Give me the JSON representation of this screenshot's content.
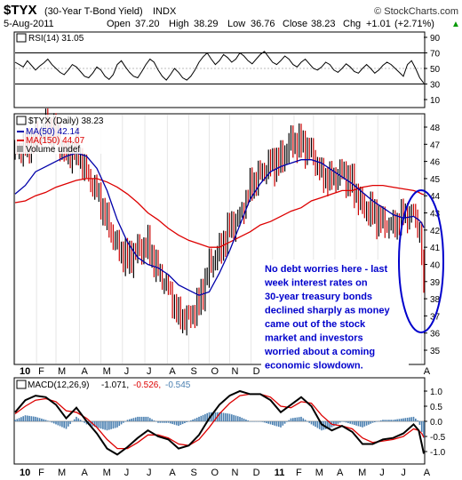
{
  "header": {
    "symbol": "$TYX",
    "name": "(30-Year T-Bond Yield)",
    "exchange": "INDX",
    "watermark": "© StockCharts.com",
    "date": "5-Aug-2011",
    "quote": {
      "open_label": "Open",
      "open": "37.20",
      "high_label": "High",
      "high": "38.29",
      "low_label": "Low",
      "low": "36.76",
      "close_label": "Close",
      "close": "38.23",
      "chg_label": "Chg",
      "chg": "+1.01",
      "chg_pct": "(+2.71%)",
      "chg_arrow": "▲"
    }
  },
  "colors": {
    "price_up": "#000000",
    "price_down": "#cc0000",
    "ma50": "#0000aa",
    "ma150": "#dd0000",
    "rsi": "#000000",
    "macd": "#000000",
    "signal": "#dd0000",
    "histogram": "#4a7fb0",
    "annotation_text": "#0000cc",
    "annotation_bg": "#ffffff",
    "ellipse": "#0000cc"
  },
  "rsi_panel": {
    "legend": "RSI(14) 31.05",
    "ticks": [
      "90",
      "70",
      "50",
      "30",
      "10"
    ],
    "guide_lines": [
      70,
      30
    ]
  },
  "price_panel": {
    "legend_title": "$TYX (Daily) 38.23",
    "legend_ma50": "MA(50) 42.14",
    "legend_ma150": "MA(150) 44.07",
    "legend_volume": "Volume undef",
    "ticks": [
      "48",
      "47",
      "46",
      "45",
      "44",
      "43",
      "42",
      "41",
      "40",
      "39",
      "38",
      "37",
      "36",
      "35"
    ]
  },
  "annotation": {
    "lines": [
      "No debt worries here - last",
      "week interest rates on",
      "30-year treasury bonds",
      "declined sharply as money",
      "came out of the stock",
      "market and investors",
      "worried about a coming",
      "economic slowdown."
    ]
  },
  "time_axis": {
    "labels": [
      "10",
      "F",
      "M",
      "A",
      "M",
      "J",
      "J",
      "A",
      "S",
      "O",
      "N",
      "D",
      "11",
      "F",
      "M",
      "A",
      "M",
      "J",
      "J",
      "A"
    ]
  },
  "macd_panel": {
    "legend_name": "MACD(12,26,9)",
    "legend_macd": "-1.071,",
    "legend_signal": "-0.526,",
    "legend_hist": "-0.545",
    "ticks": [
      "1.0",
      "0.5",
      "0.0",
      "-0.5",
      "-1.0"
    ]
  },
  "chart_data": [
    {
      "type": "line",
      "name": "RSI(14)",
      "title": "RSI(14) 31.05",
      "ylim": [
        10,
        90
      ],
      "y_ticks": [
        90,
        70,
        50,
        30,
        10
      ],
      "grid": false,
      "x": [
        0,
        4,
        8,
        12,
        16,
        20,
        24,
        28,
        32,
        36,
        40,
        44,
        48,
        52,
        56,
        60,
        64,
        68,
        72,
        76,
        80,
        84,
        88,
        92,
        96,
        100,
        104,
        108,
        112,
        116,
        120,
        124,
        128,
        132,
        136,
        140,
        144,
        148,
        152,
        156,
        160,
        164,
        168,
        172,
        176,
        180,
        184,
        188,
        192,
        196,
        200,
        204,
        208,
        212,
        216,
        220,
        224,
        228,
        232,
        236,
        240,
        244,
        248,
        252,
        256,
        260,
        264,
        268,
        272,
        276,
        280,
        284,
        288,
        292,
        296,
        300,
        304,
        308,
        312,
        316,
        320,
        324,
        328,
        332,
        336,
        340,
        344,
        348,
        352,
        356,
        360,
        364,
        368,
        372,
        376,
        380,
        384,
        388,
        392,
        396,
        400
      ],
      "values": [
        58,
        55,
        52,
        60,
        54,
        48,
        53,
        57,
        62,
        55,
        50,
        45,
        42,
        48,
        55,
        52,
        46,
        40,
        38,
        44,
        52,
        48,
        40,
        36,
        42,
        55,
        60,
        52,
        45,
        40,
        38,
        46,
        55,
        62,
        58,
        48,
        40,
        35,
        42,
        50,
        45,
        38,
        35,
        40,
        48,
        58,
        65,
        70,
        62,
        55,
        60,
        68,
        64,
        58,
        62,
        70,
        66,
        60,
        56,
        62,
        68,
        72,
        65,
        58,
        55,
        60,
        66,
        62,
        55,
        52,
        58,
        62,
        56,
        50,
        48,
        52,
        58,
        55,
        48,
        45,
        50,
        56,
        52,
        46,
        44,
        50,
        55,
        50,
        44,
        48,
        54,
        58,
        55,
        50,
        45,
        40,
        55,
        60,
        50,
        38,
        31
      ]
    },
    {
      "type": "line",
      "name": "$TYX (Daily)",
      "title": "$TYX (Daily) 38.23",
      "ylim": [
        34.5,
        48.5
      ],
      "y_ticks": [
        48,
        47,
        46,
        45,
        44,
        43,
        42,
        41,
        40,
        39,
        38,
        37,
        36,
        35
      ],
      "x_tick_labels": [
        "10",
        "F",
        "M",
        "A",
        "M",
        "J",
        "J",
        "A",
        "S",
        "O",
        "N",
        "D",
        "11",
        "F",
        "M",
        "A",
        "M",
        "J",
        "J",
        "A"
      ],
      "x_tick_positions": [
        0,
        21,
        40,
        63,
        84,
        105,
        127,
        149,
        170,
        190,
        210,
        231,
        252,
        273,
        292,
        313,
        334,
        355,
        376,
        398
      ],
      "x": [
        0,
        10,
        20,
        30,
        40,
        50,
        60,
        70,
        80,
        90,
        100,
        110,
        120,
        130,
        140,
        150,
        160,
        170,
        180,
        190,
        200,
        210,
        220,
        230,
        240,
        250,
        260,
        270,
        280,
        290,
        300,
        310,
        320,
        330,
        340,
        350,
        360,
        370,
        380,
        390,
        395,
        398,
        400
      ],
      "series": [
        {
          "name": "$TYX",
          "values": [
            46.7,
            46.9,
            47.3,
            47.9,
            47.6,
            46.2,
            46.8,
            45.4,
            44.3,
            42.5,
            41.0,
            40.2,
            40.8,
            41.1,
            39.6,
            38.7,
            37.0,
            36.8,
            37.7,
            39.8,
            40.7,
            42.2,
            42.8,
            44.6,
            45.3,
            45.8,
            46.0,
            47.1,
            47.0,
            46.6,
            45.3,
            45.0,
            45.4,
            44.6,
            43.3,
            43.0,
            42.4,
            42.3,
            43.0,
            42.9,
            42.3,
            40.5,
            38.23
          ]
        },
        {
          "name": "MA(50)",
          "values": [
            44.1,
            44.6,
            45.4,
            45.7,
            46.0,
            46.3,
            46.5,
            46.3,
            45.6,
            44.3,
            42.6,
            41.3,
            40.4,
            40.0,
            39.8,
            39.4,
            38.8,
            38.5,
            38.2,
            38.4,
            39.5,
            40.8,
            42.3,
            43.8,
            44.7,
            45.4,
            45.7,
            45.9,
            46.1,
            46.1,
            45.9,
            45.5,
            45.1,
            44.7,
            44.2,
            43.7,
            43.3,
            42.9,
            42.7,
            42.8,
            42.6,
            42.4,
            42.14
          ]
        },
        {
          "name": "MA(150)",
          "values": [
            43.6,
            43.7,
            44.0,
            44.2,
            44.5,
            44.7,
            44.9,
            45.0,
            45.0,
            44.8,
            44.5,
            44.1,
            43.6,
            43.0,
            42.6,
            42.1,
            41.7,
            41.4,
            41.2,
            41.0,
            41.0,
            41.3,
            41.6,
            41.9,
            42.3,
            42.5,
            42.8,
            43.1,
            43.3,
            43.7,
            43.9,
            44.1,
            44.3,
            44.3,
            44.5,
            44.6,
            44.6,
            44.5,
            44.4,
            44.3,
            44.2,
            44.1,
            44.07
          ]
        }
      ]
    },
    {
      "type": "line",
      "name": "MACD(12,26,9)",
      "title": "MACD(12,26,9) -1.071, -0.526, -0.545",
      "ylim": [
        -1.2,
        1.2
      ],
      "y_ticks": [
        1.0,
        0.5,
        0.0,
        -0.5,
        -1.0
      ],
      "x": [
        0,
        10,
        20,
        30,
        40,
        50,
        60,
        70,
        80,
        90,
        100,
        110,
        120,
        130,
        140,
        150,
        160,
        170,
        180,
        190,
        200,
        210,
        220,
        230,
        240,
        250,
        260,
        270,
        280,
        290,
        300,
        310,
        320,
        330,
        340,
        350,
        360,
        370,
        380,
        390,
        395,
        398,
        400
      ],
      "series": [
        {
          "name": "MACD",
          "values": [
            0.3,
            0.7,
            0.85,
            0.8,
            0.55,
            0.1,
            0.45,
            0.0,
            -0.4,
            -0.9,
            -1.1,
            -0.85,
            -0.55,
            -0.3,
            -0.5,
            -0.6,
            -0.9,
            -0.8,
            -0.45,
            0.1,
            0.55,
            0.85,
            1.0,
            0.9,
            0.9,
            0.7,
            0.3,
            0.55,
            0.8,
            0.5,
            -0.1,
            -0.3,
            -0.15,
            -0.35,
            -0.75,
            -0.75,
            -0.6,
            -0.55,
            -0.4,
            -0.1,
            -0.3,
            -0.75,
            -1.071
          ]
        },
        {
          "name": "Signal",
          "values": [
            0.25,
            0.5,
            0.7,
            0.75,
            0.65,
            0.35,
            0.3,
            0.1,
            -0.2,
            -0.6,
            -0.9,
            -0.9,
            -0.7,
            -0.45,
            -0.45,
            -0.55,
            -0.75,
            -0.8,
            -0.6,
            -0.2,
            0.25,
            0.6,
            0.85,
            0.9,
            0.9,
            0.8,
            0.5,
            0.45,
            0.65,
            0.6,
            0.2,
            -0.1,
            -0.15,
            -0.25,
            -0.55,
            -0.7,
            -0.65,
            -0.6,
            -0.5,
            -0.25,
            -0.3,
            -0.4,
            -0.526
          ]
        },
        {
          "name": "Histogram",
          "values": [
            0.05,
            0.2,
            0.15,
            0.05,
            -0.1,
            -0.25,
            0.15,
            -0.1,
            -0.2,
            -0.3,
            -0.2,
            0.05,
            0.15,
            0.15,
            -0.05,
            -0.05,
            -0.15,
            0.0,
            0.15,
            0.3,
            0.3,
            0.25,
            0.15,
            0.0,
            0.0,
            -0.1,
            -0.2,
            0.1,
            0.15,
            -0.1,
            -0.3,
            -0.2,
            0.0,
            -0.1,
            -0.2,
            -0.05,
            0.05,
            0.05,
            0.1,
            0.15,
            0.0,
            -0.35,
            -0.545
          ]
        }
      ]
    }
  ]
}
